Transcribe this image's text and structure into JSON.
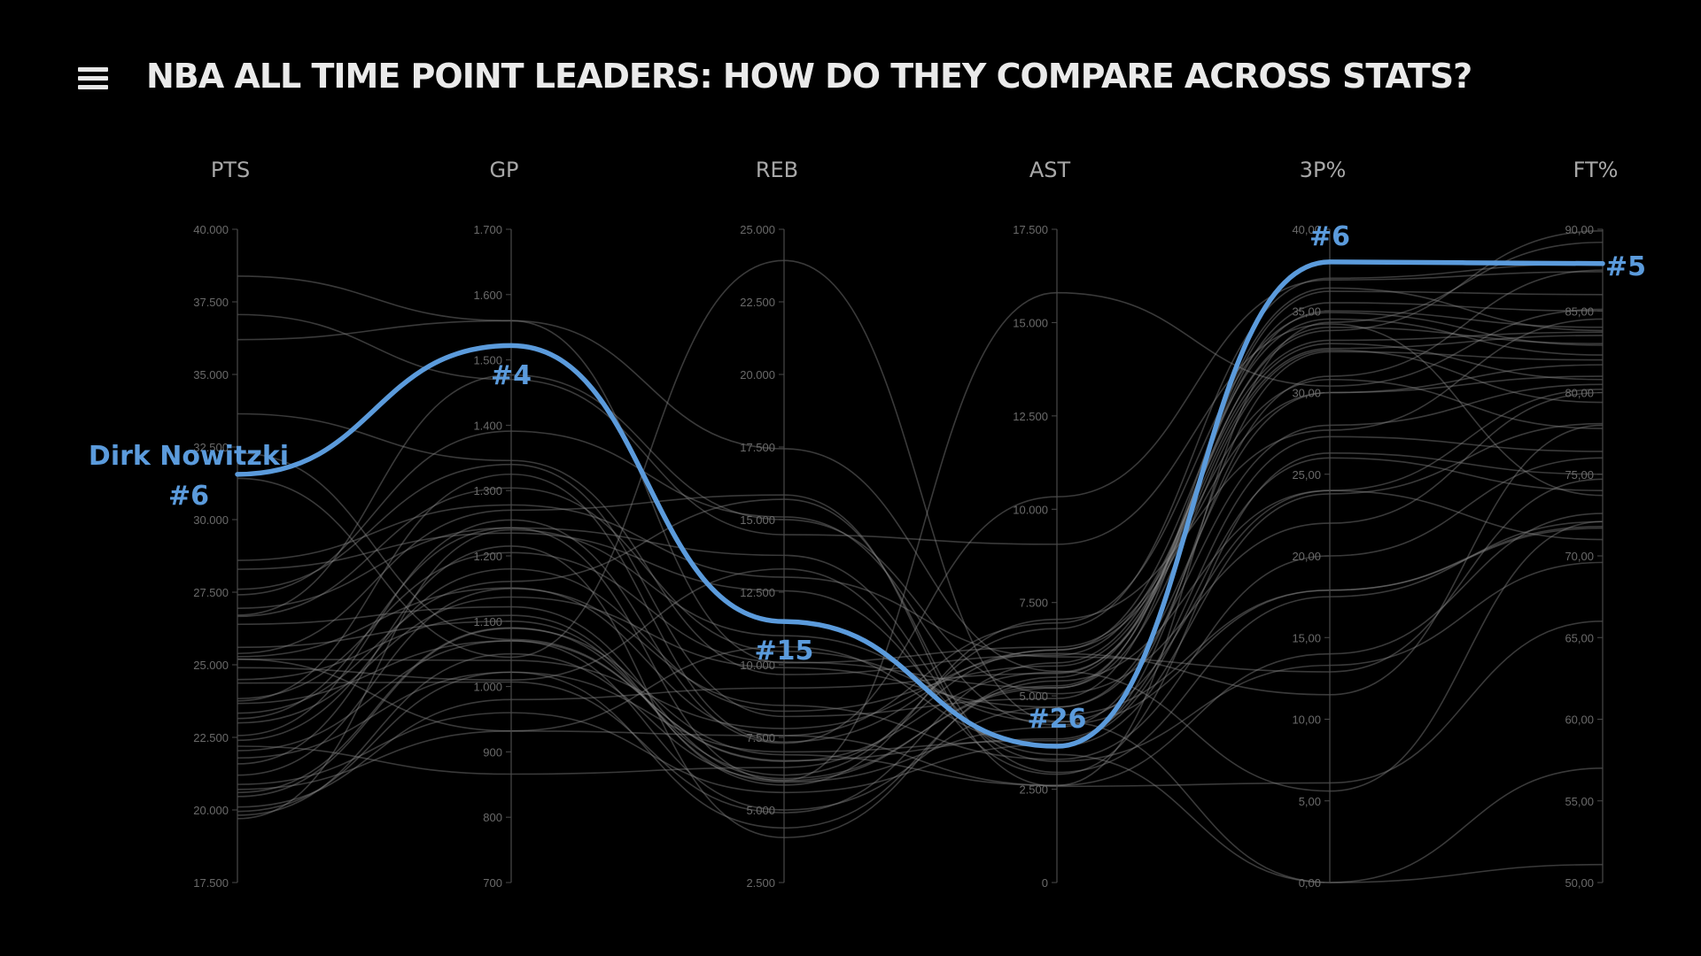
{
  "header": {
    "title": "NBA ALL TIME POINT LEADERS: HOW DO THEY COMPARE ACROSS STATS?",
    "menu_icon": "hamburger-menu-icon"
  },
  "colors": {
    "background": "#000000",
    "highlight": "#5b9bdc",
    "lines": "#8a8a8a"
  },
  "chart_data": {
    "type": "parallel-coordinates",
    "title": "NBA ALL TIME POINT LEADERS: HOW DO THEY COMPARE ACROSS STATS?",
    "axes": [
      {
        "key": "PTS",
        "label": "PTS",
        "min": 17500,
        "max": 40000,
        "ticks": [
          "17.500",
          "20.000",
          "22.500",
          "25.000",
          "27.500",
          "30.000",
          "32.500",
          "35.000",
          "37.500",
          "40.000"
        ]
      },
      {
        "key": "GP",
        "label": "GP",
        "min": 700,
        "max": 1700,
        "ticks": [
          "700",
          "800",
          "900",
          "1.000",
          "1.100",
          "1.200",
          "1.300",
          "1.400",
          "1.500",
          "1.600",
          "1.700"
        ]
      },
      {
        "key": "REB",
        "label": "REB",
        "min": 2500,
        "max": 25000,
        "ticks": [
          "2.500",
          "5.000",
          "7.500",
          "10.000",
          "12.500",
          "15.000",
          "17.500",
          "20.000",
          "22.500",
          "25.000"
        ]
      },
      {
        "key": "AST",
        "label": "AST",
        "min": 0,
        "max": 17500,
        "ticks": [
          "0",
          "2.500",
          "5.000",
          "7.500",
          "10.000",
          "12.500",
          "15.000",
          "17.500"
        ]
      },
      {
        "key": "3P%",
        "label": "3P%",
        "min": 0,
        "max": 40,
        "ticks": [
          "0,00",
          "5,00",
          "10,00",
          "15,00",
          "20,00",
          "25,00",
          "30,00",
          "35,00",
          "40,00"
        ]
      },
      {
        "key": "FT%",
        "label": "FT%",
        "min": 50,
        "max": 90,
        "ticks": [
          "50,00",
          "55,00",
          "60,00",
          "65,00",
          "70,00",
          "75,00",
          "80,00",
          "85,00",
          "90,00"
        ]
      }
    ],
    "highlight": {
      "name": "Dirk Nowitzki",
      "values": [
        31560,
        1522,
        11489,
        3651,
        38.0,
        87.9
      ],
      "ranks": [
        "#6",
        "#4",
        "#15",
        "#26",
        "#6",
        "#5"
      ]
    },
    "series": [
      {
        "values": [
          38387,
          1560,
          17440,
          5660,
          5.6,
          72.1
        ]
      },
      {
        "values": [
          37062,
          1470,
          14481,
          9061,
          34.2,
          73.7
        ]
      },
      {
        "values": [
          36200,
          1560,
          10067,
          6306,
          30.8,
          77.8
        ]
      },
      {
        "values": [
          33643,
          1346,
          9662,
          6087,
          33.2,
          83.7
        ]
      },
      {
        "values": [
          32292,
          1072,
          6672,
          5633,
          32.7,
          83.5
        ]
      },
      {
        "values": [
          31419,
          1045,
          23924,
          4321,
          0.0,
          51.1
        ]
      },
      {
        "values": [
          28596,
          1278,
          13017,
          6046,
          12.9,
          74.7
        ]
      },
      {
        "values": [
          28289,
          1235,
          12546,
          3431,
          0.0,
          57.0
        ]
      },
      {
        "values": [
          27409,
          1391,
          15091,
          4225,
          17.9,
          71.7
        ]
      },
      {
        "values": [
          26946,
          1243,
          13769,
          3246,
          13.3,
          69.6
        ]
      },
      {
        "values": [
          26710,
          1477,
          15000,
          5060,
          22.0,
          80.0
        ]
      },
      {
        "values": [
          26668,
          1304,
          10459,
          4487,
          17.9,
          71.8
        ]
      },
      {
        "values": [
          26395,
          1122,
          6080,
          5215,
          36.4,
          83.8
        ]
      },
      {
        "values": [
          25192,
          1040,
          7804,
          6135,
          11.5,
          78.0
        ]
      },
      {
        "values": [
          25389,
          1270,
          15848,
          2576,
          6.1,
          66.0
        ]
      },
      {
        "values": [
          25279,
          1151,
          7561,
          6955,
          34.9,
          82.9
        ]
      },
      {
        "values": [
          25192,
          932,
          10624,
          3650,
          23.8,
          78.1
        ]
      },
      {
        "values": [
          24491,
          1109,
          5858,
          7050,
          27.7,
          84.5
        ]
      },
      {
        "values": [
          24368,
          1007,
          4904,
          5886,
          33.8,
          89.9
        ]
      },
      {
        "values": [
          23834,
          1205,
          10092,
          5219,
          32.6,
          79.4
        ]
      },
      {
        "values": [
          23757,
          1325,
          7340,
          6223,
          34.5,
          82.3
        ]
      },
      {
        "values": [
          23668,
          1070,
          6700,
          3848,
          27.3,
          76.4
        ]
      },
      {
        "values": [
          23334,
          1161,
          15699,
          2950,
          17.5,
          72.1
        ]
      },
      {
        "values": [
          23149,
          1243,
          6000,
          5270,
          35.5,
          85.0
        ]
      },
      {
        "values": [
          22996,
          1137,
          9900,
          4700,
          30.0,
          81.0
        ]
      },
      {
        "values": [
          22564,
          1255,
          7300,
          10334,
          36.9,
          87.4
        ]
      },
      {
        "values": [
          22195,
          866,
          6463,
          6238,
          30.0,
          81.7
        ]
      },
      {
        "values": [
          22040,
          1070,
          5000,
          4700,
          28.0,
          80.5
        ]
      },
      {
        "values": [
          21791,
          1022,
          7000,
          3800,
          26.0,
          74.0
        ]
      },
      {
        "values": [
          21586,
          1215,
          4050,
          5500,
          35.0,
          84.0
        ]
      },
      {
        "values": [
          21200,
          1150,
          8600,
          3300,
          20.0,
          76.0
        ]
      },
      {
        "values": [
          20880,
          960,
          5600,
          3700,
          32.5,
          82.0
        ]
      },
      {
        "values": [
          20708,
          932,
          7560,
          2600,
          14.0,
          72.6
        ]
      },
      {
        "values": [
          20600,
          1090,
          6200,
          6800,
          37.0,
          87.9
        ]
      },
      {
        "values": [
          20462,
          1089,
          6900,
          2600,
          34.3,
          89.2
        ]
      },
      {
        "values": [
          20100,
          980,
          9200,
          5600,
          34.0,
          83.0
        ]
      },
      {
        "values": [
          19950,
          1022,
          4380,
          5400,
          24.0,
          80.2
        ]
      },
      {
        "values": [
          19820,
          1050,
          6020,
          15800,
          30.4,
          85.1
        ]
      },
      {
        "values": [
          19700,
          1240,
          11000,
          4300,
          24.0,
          71.0
        ]
      },
      {
        "values": [
          25600,
          1100,
          5960,
          4160,
          31.0,
          87.5
        ]
      },
      {
        "values": [
          27600,
          1340,
          8220,
          4930,
          36.2,
          86.0
        ]
      },
      {
        "values": [
          24900,
          1010,
          13300,
          2900,
          26.3,
          75.0
        ]
      },
      {
        "values": [
          22400,
          1180,
          8400,
          5800,
          33.0,
          80.8
        ]
      }
    ]
  }
}
